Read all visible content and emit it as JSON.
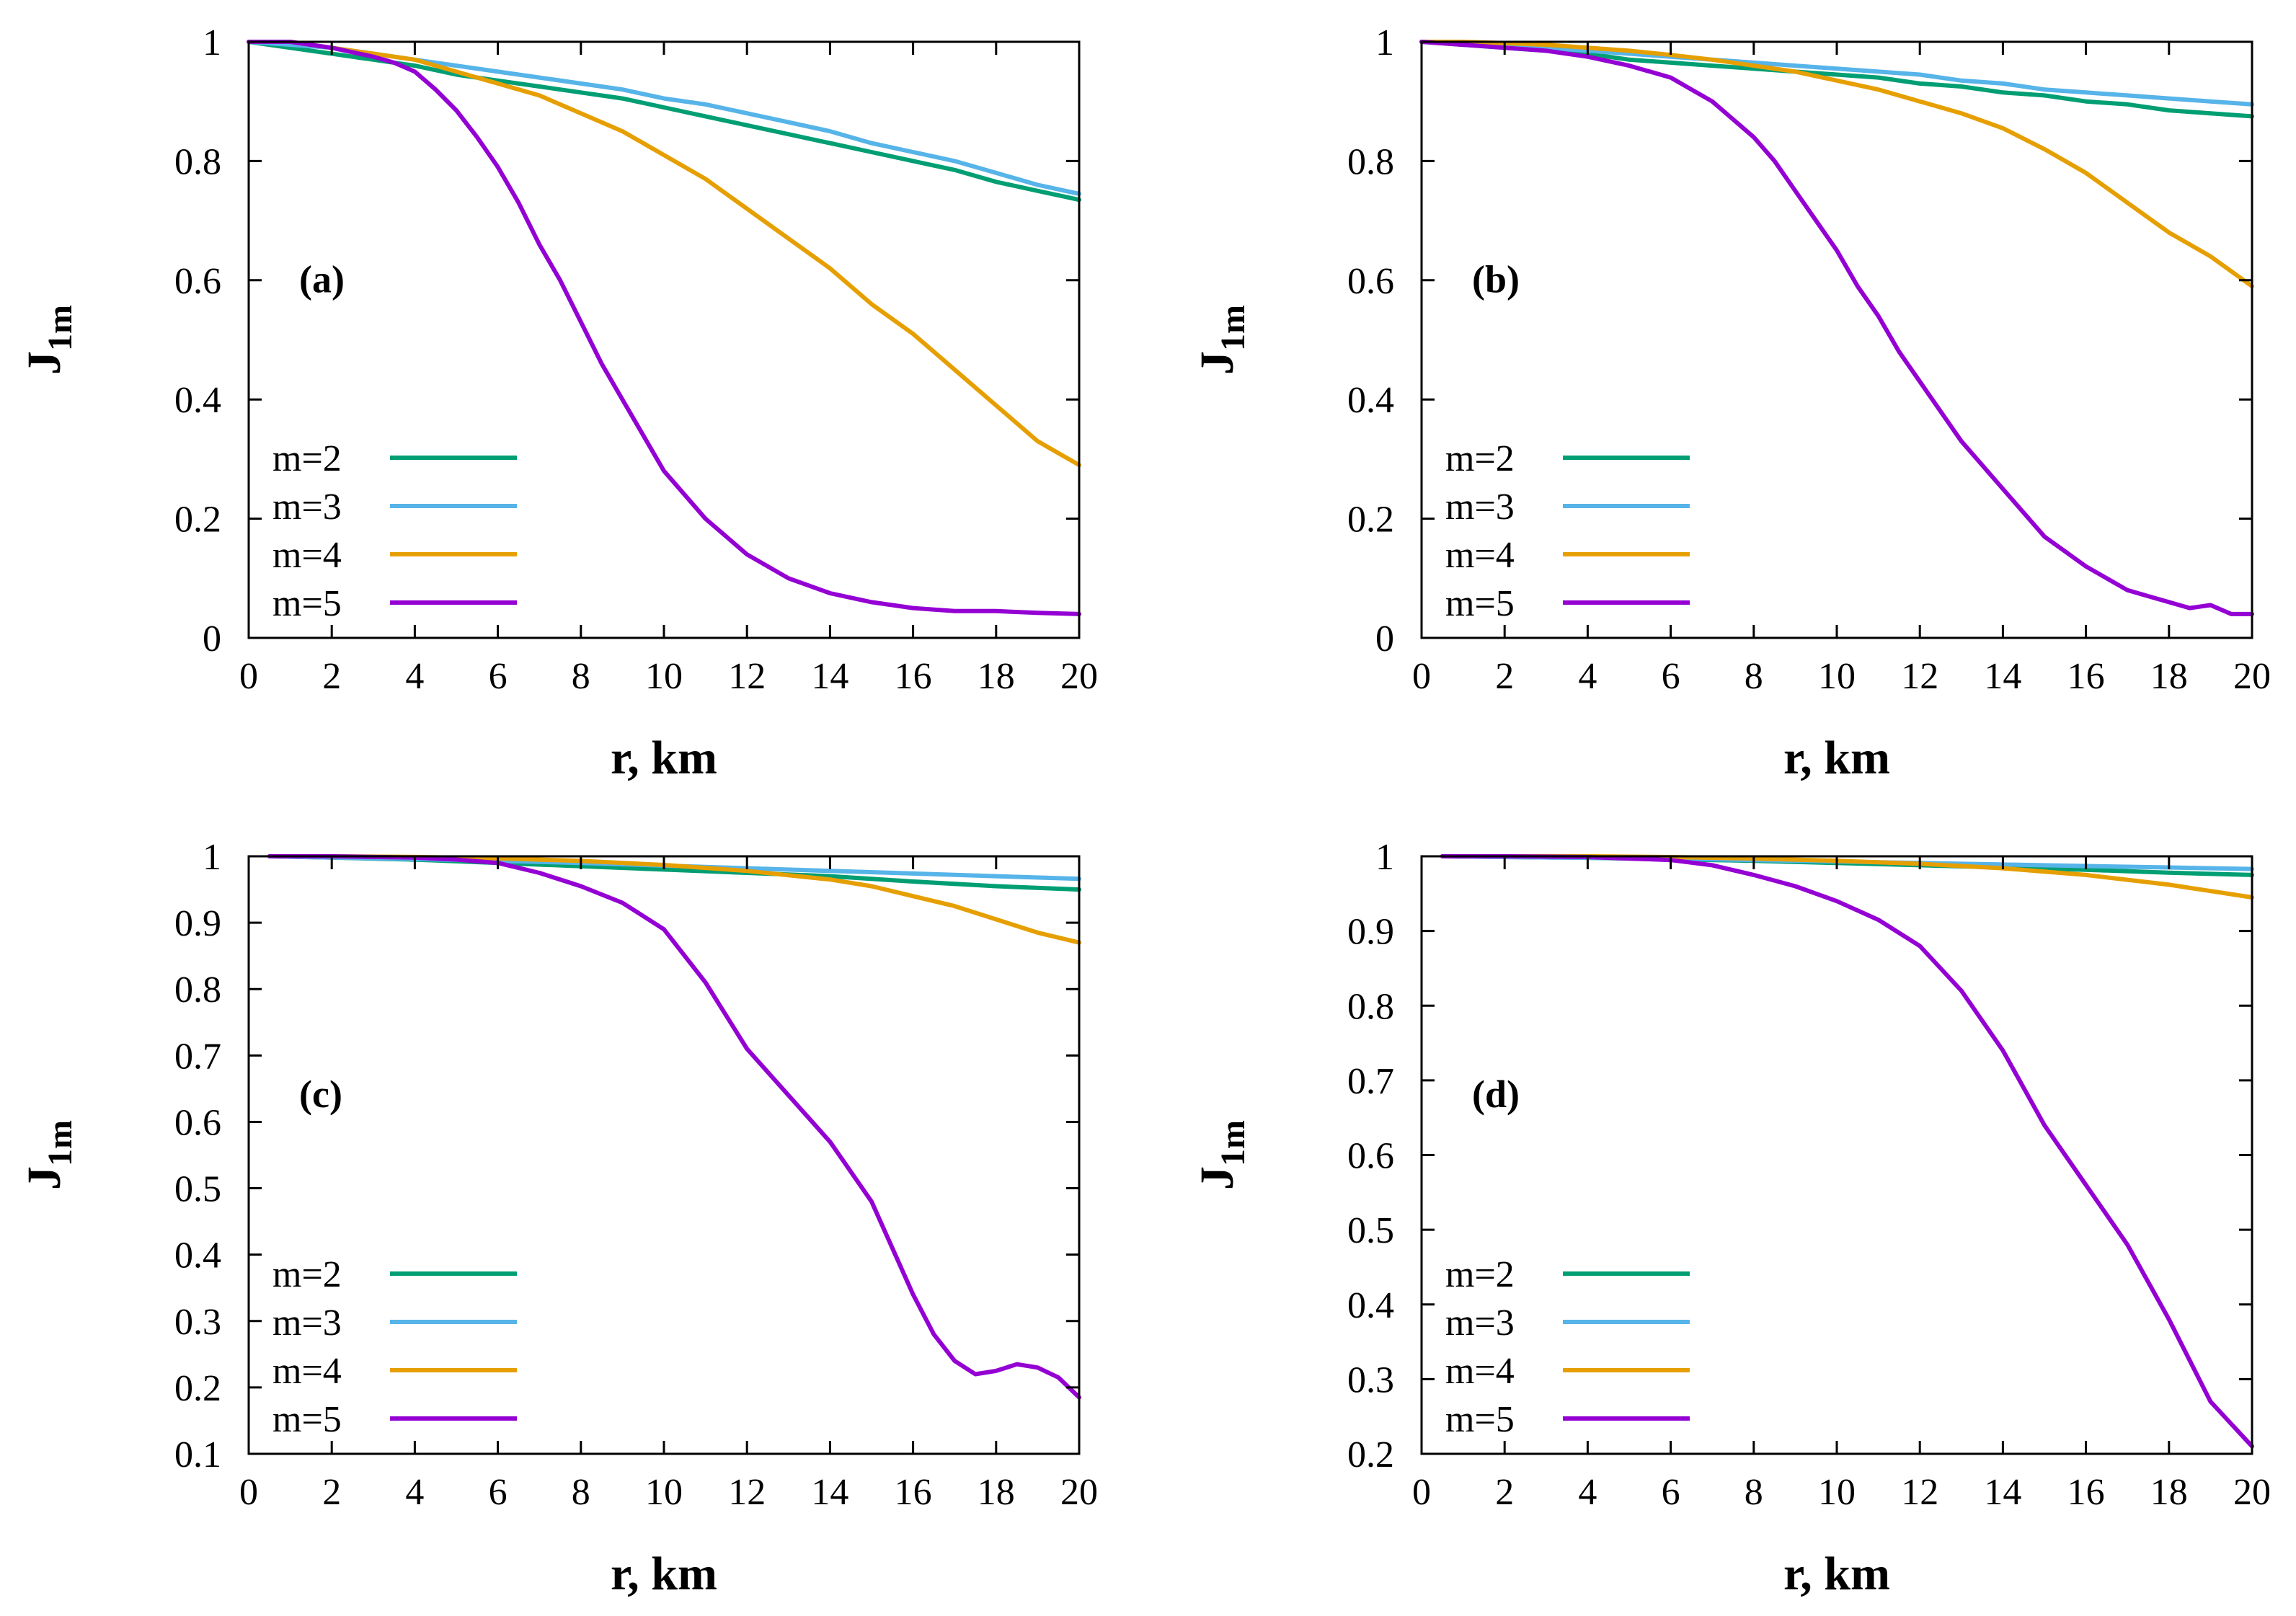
{
  "colors": {
    "m2": "#009e73",
    "m3": "#56b4e9",
    "m4": "#e69f00",
    "m5": "#9400d3"
  },
  "chart_data": [
    {
      "type": "line",
      "panel": "(a)",
      "xlabel": "r, km",
      "ylabel_main": "J",
      "ylabel_sub": "1m",
      "xlim": [
        0,
        20
      ],
      "ylim": [
        0,
        1
      ],
      "xticks": [
        0,
        2,
        4,
        6,
        8,
        10,
        12,
        14,
        16,
        18,
        20
      ],
      "yticks": [
        0,
        0.2,
        0.4,
        0.6,
        0.8,
        1
      ],
      "ytick_labels": [
        "0",
        "0.2",
        "0.4",
        "0.6",
        "0.8",
        "1"
      ],
      "legend_location": "lower-left",
      "series": [
        {
          "name": "m=2",
          "color": "#009e73",
          "x": [
            0,
            1,
            2,
            3,
            4,
            5,
            6,
            7,
            8,
            9,
            10,
            11,
            12,
            13,
            14,
            15,
            16,
            17,
            18,
            19,
            20
          ],
          "y": [
            1,
            0.99,
            0.98,
            0.97,
            0.96,
            0.945,
            0.935,
            0.925,
            0.915,
            0.905,
            0.89,
            0.875,
            0.86,
            0.845,
            0.83,
            0.815,
            0.8,
            0.785,
            0.765,
            0.75,
            0.735
          ]
        },
        {
          "name": "m=3",
          "color": "#56b4e9",
          "x": [
            0,
            1,
            2,
            3,
            4,
            5,
            6,
            7,
            8,
            9,
            10,
            11,
            12,
            13,
            14,
            15,
            16,
            17,
            18,
            19,
            20
          ],
          "y": [
            1,
            0.995,
            0.99,
            0.98,
            0.97,
            0.96,
            0.95,
            0.94,
            0.93,
            0.92,
            0.905,
            0.895,
            0.88,
            0.865,
            0.85,
            0.83,
            0.815,
            0.8,
            0.78,
            0.76,
            0.745
          ]
        },
        {
          "name": "m=4",
          "color": "#e69f00",
          "x": [
            0,
            1,
            2,
            3,
            4,
            5,
            6,
            7,
            8,
            9,
            10,
            11,
            12,
            13,
            14,
            15,
            16,
            17,
            18,
            19,
            20
          ],
          "y": [
            1,
            1,
            0.99,
            0.98,
            0.97,
            0.95,
            0.93,
            0.91,
            0.88,
            0.85,
            0.81,
            0.77,
            0.72,
            0.67,
            0.62,
            0.56,
            0.51,
            0.45,
            0.39,
            0.33,
            0.29
          ]
        },
        {
          "name": "m=5",
          "color": "#9400d3",
          "x": [
            0,
            1,
            2,
            3,
            3.5,
            4,
            4.5,
            5,
            5.5,
            6,
            6.5,
            7,
            7.5,
            8,
            8.5,
            9,
            9.5,
            10,
            10.5,
            11,
            11.5,
            12,
            13,
            14,
            15,
            16,
            17,
            18,
            19,
            20
          ],
          "y": [
            1,
            1,
            0.99,
            0.975,
            0.965,
            0.95,
            0.92,
            0.885,
            0.84,
            0.79,
            0.73,
            0.66,
            0.6,
            0.53,
            0.46,
            0.4,
            0.34,
            0.28,
            0.24,
            0.2,
            0.17,
            0.14,
            0.1,
            0.075,
            0.06,
            0.05,
            0.045,
            0.045,
            0.042,
            0.04
          ]
        }
      ]
    },
    {
      "type": "line",
      "panel": "(b)",
      "xlabel": "r, km",
      "ylabel_main": "J",
      "ylabel_sub": "1m",
      "xlim": [
        0,
        20
      ],
      "ylim": [
        0,
        1
      ],
      "xticks": [
        0,
        2,
        4,
        6,
        8,
        10,
        12,
        14,
        16,
        18,
        20
      ],
      "yticks": [
        0,
        0.2,
        0.4,
        0.6,
        0.8,
        1
      ],
      "ytick_labels": [
        "0",
        "0.2",
        "0.4",
        "0.6",
        "0.8",
        "1"
      ],
      "legend_location": "lower-left",
      "series": [
        {
          "name": "m=2",
          "color": "#009e73",
          "x": [
            0,
            1,
            2,
            3,
            4,
            5,
            6,
            7,
            8,
            9,
            10,
            11,
            12,
            13,
            14,
            15,
            16,
            17,
            18,
            19,
            20
          ],
          "y": [
            1,
            0.995,
            0.99,
            0.985,
            0.98,
            0.97,
            0.965,
            0.96,
            0.955,
            0.95,
            0.945,
            0.94,
            0.93,
            0.925,
            0.915,
            0.91,
            0.9,
            0.895,
            0.885,
            0.88,
            0.875
          ]
        },
        {
          "name": "m=3",
          "color": "#56b4e9",
          "x": [
            0,
            1,
            2,
            3,
            4,
            5,
            6,
            7,
            8,
            9,
            10,
            11,
            12,
            13,
            14,
            15,
            16,
            17,
            18,
            19,
            20
          ],
          "y": [
            1,
            0.998,
            0.995,
            0.99,
            0.985,
            0.98,
            0.975,
            0.97,
            0.965,
            0.96,
            0.955,
            0.95,
            0.945,
            0.935,
            0.93,
            0.92,
            0.915,
            0.91,
            0.905,
            0.9,
            0.895
          ]
        },
        {
          "name": "m=4",
          "color": "#e69f00",
          "x": [
            0,
            1,
            2,
            3,
            4,
            5,
            6,
            7,
            8,
            9,
            10,
            11,
            12,
            13,
            14,
            15,
            16,
            17,
            18,
            19,
            20
          ],
          "y": [
            1,
            1,
            0.998,
            0.995,
            0.99,
            0.985,
            0.978,
            0.97,
            0.96,
            0.95,
            0.935,
            0.92,
            0.9,
            0.88,
            0.855,
            0.82,
            0.78,
            0.73,
            0.68,
            0.64,
            0.59
          ]
        },
        {
          "name": "m=5",
          "color": "#9400d3",
          "x": [
            0,
            1,
            2,
            3,
            4,
            5,
            6,
            6.5,
            7,
            7.5,
            8,
            8.5,
            9,
            9.5,
            10,
            10.5,
            11,
            11.5,
            12,
            13,
            14,
            15,
            16,
            17,
            17.5,
            18,
            18.5,
            19,
            19.5,
            20
          ],
          "y": [
            1,
            0.995,
            0.99,
            0.985,
            0.975,
            0.96,
            0.94,
            0.92,
            0.9,
            0.87,
            0.84,
            0.8,
            0.75,
            0.7,
            0.65,
            0.59,
            0.54,
            0.48,
            0.43,
            0.33,
            0.25,
            0.17,
            0.12,
            0.08,
            0.07,
            0.06,
            0.05,
            0.055,
            0.04,
            0.04
          ]
        }
      ]
    },
    {
      "type": "line",
      "panel": "(c)",
      "xlabel": "r, km",
      "ylabel_main": "J",
      "ylabel_sub": "1m",
      "xlim": [
        0,
        20
      ],
      "ylim": [
        0.1,
        1
      ],
      "xticks": [
        0,
        2,
        4,
        6,
        8,
        10,
        12,
        14,
        16,
        18,
        20
      ],
      "yticks": [
        0.1,
        0.2,
        0.3,
        0.4,
        0.5,
        0.6,
        0.7,
        0.8,
        0.9,
        1
      ],
      "ytick_labels": [
        "0.1",
        "0.2",
        "0.3",
        "0.4",
        "0.5",
        "0.6",
        "0.7",
        "0.8",
        "0.9",
        "1"
      ],
      "legend_location": "lower-left",
      "series": [
        {
          "name": "m=2",
          "color": "#009e73",
          "x": [
            0.5,
            2,
            4,
            6,
            8,
            10,
            12,
            14,
            16,
            18,
            20
          ],
          "y": [
            1,
            0.998,
            0.995,
            0.99,
            0.985,
            0.98,
            0.975,
            0.97,
            0.962,
            0.955,
            0.95
          ]
        },
        {
          "name": "m=3",
          "color": "#56b4e9",
          "x": [
            0.5,
            2,
            4,
            6,
            8,
            10,
            12,
            14,
            16,
            18,
            20
          ],
          "y": [
            1,
            0.998,
            0.996,
            0.993,
            0.99,
            0.986,
            0.982,
            0.978,
            0.974,
            0.97,
            0.966
          ]
        },
        {
          "name": "m=4",
          "color": "#e69f00",
          "x": [
            0.5,
            2,
            4,
            6,
            8,
            10,
            12,
            14,
            15,
            16,
            17,
            18,
            19,
            20
          ],
          "y": [
            1,
            1,
            0.999,
            0.997,
            0.993,
            0.987,
            0.978,
            0.965,
            0.955,
            0.94,
            0.925,
            0.905,
            0.885,
            0.87
          ]
        },
        {
          "name": "m=5",
          "color": "#9400d3",
          "x": [
            0.5,
            2,
            4,
            5,
            6,
            7,
            8,
            9,
            10,
            11,
            12,
            13,
            14,
            15,
            16,
            16.5,
            17,
            17.5,
            18,
            18.5,
            19,
            19.5,
            20
          ],
          "y": [
            1,
            1,
            0.998,
            0.995,
            0.99,
            0.975,
            0.955,
            0.93,
            0.89,
            0.81,
            0.71,
            0.64,
            0.57,
            0.48,
            0.34,
            0.28,
            0.24,
            0.22,
            0.225,
            0.235,
            0.23,
            0.215,
            0.185
          ]
        }
      ]
    },
    {
      "type": "line",
      "panel": "(d)",
      "xlabel": "r, km",
      "ylabel_main": "J",
      "ylabel_sub": "1m",
      "xlim": [
        0,
        20
      ],
      "ylim": [
        0.2,
        1
      ],
      "xticks": [
        0,
        2,
        4,
        6,
        8,
        10,
        12,
        14,
        16,
        18,
        20
      ],
      "yticks": [
        0.2,
        0.3,
        0.4,
        0.5,
        0.6,
        0.7,
        0.8,
        0.9,
        1
      ],
      "ytick_labels": [
        "0.2",
        "0.3",
        "0.4",
        "0.5",
        "0.6",
        "0.7",
        "0.8",
        "0.9",
        "1"
      ],
      "legend_location": "lower-left",
      "series": [
        {
          "name": "m=2",
          "color": "#009e73",
          "x": [
            0.5,
            2,
            4,
            6,
            8,
            10,
            12,
            14,
            16,
            18,
            20
          ],
          "y": [
            1,
            0.999,
            0.998,
            0.996,
            0.994,
            0.991,
            0.988,
            0.985,
            0.982,
            0.978,
            0.975
          ]
        },
        {
          "name": "m=3",
          "color": "#56b4e9",
          "x": [
            0.5,
            2,
            4,
            6,
            8,
            10,
            12,
            14,
            16,
            18,
            20
          ],
          "y": [
            1,
            0.999,
            0.998,
            0.997,
            0.995,
            0.993,
            0.991,
            0.989,
            0.987,
            0.985,
            0.983
          ]
        },
        {
          "name": "m=4",
          "color": "#e69f00",
          "x": [
            0.5,
            2,
            4,
            6,
            8,
            10,
            12,
            14,
            16,
            18,
            20
          ],
          "y": [
            1,
            1,
            1,
            0.999,
            0.997,
            0.994,
            0.99,
            0.984,
            0.975,
            0.962,
            0.945
          ]
        },
        {
          "name": "m=5",
          "color": "#9400d3",
          "x": [
            0.5,
            2,
            4,
            6,
            7,
            8,
            9,
            10,
            11,
            12,
            13,
            14,
            15,
            16,
            17,
            18,
            19,
            20
          ],
          "y": [
            1,
            1,
            0.999,
            0.995,
            0.988,
            0.975,
            0.96,
            0.94,
            0.915,
            0.88,
            0.82,
            0.74,
            0.64,
            0.56,
            0.48,
            0.38,
            0.27,
            0.21
          ]
        }
      ]
    }
  ]
}
